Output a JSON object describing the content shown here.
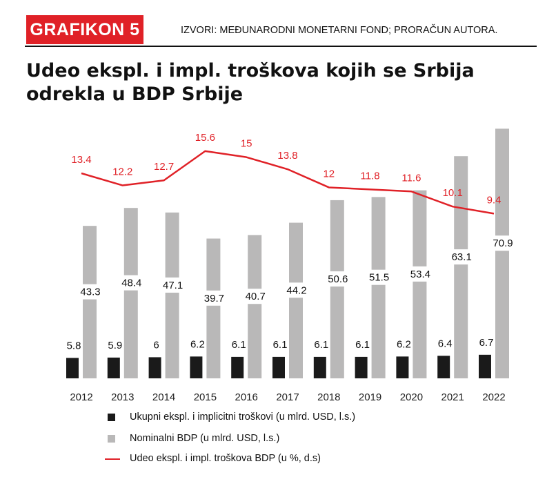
{
  "header": {
    "badge": "GRAFIKON 5",
    "source": "IZVORI: MEĐUNARODNI MONETARNI FOND; PRORAČUN AUTORA.",
    "title": "Udeo ekspl. i impl. troškova kojih se Srbija odrekla u BDP Srbije"
  },
  "colors": {
    "accent": "#e02127",
    "dark_bar": "#1a1a1a",
    "light_bar": "#b9b8b8"
  },
  "chart_data": {
    "type": "bar",
    "categories": [
      "2012",
      "2013",
      "2014",
      "2015",
      "2016",
      "2017",
      "2018",
      "2019",
      "2020",
      "2021",
      "2022"
    ],
    "series": [
      {
        "name": "Ukupni ekspl. i implicitni troškovi (u mlrd. USD, l.s.)",
        "type": "bar",
        "values": [
          5.8,
          5.9,
          6,
          6.2,
          6.1,
          6.1,
          6.1,
          6.1,
          6.2,
          6.4,
          6.7
        ],
        "labels": [
          "5.8",
          "5.9",
          "6",
          "6.2",
          "6.1",
          "6.1",
          "6.1",
          "6.1",
          "6.2",
          "6.4",
          "6.7"
        ]
      },
      {
        "name": "Nominalni BDP (u mlrd. USD, l.s.)",
        "type": "bar",
        "values": [
          43.3,
          48.4,
          47.1,
          39.7,
          40.7,
          44.2,
          50.6,
          51.5,
          53.4,
          63.1,
          70.9
        ],
        "labels": [
          "43.3",
          "48.4",
          "47.1",
          "39.7",
          "40.7",
          "44.2",
          "50.6",
          "51.5",
          "53.4",
          "63.1",
          "70.9"
        ]
      },
      {
        "name": "Udeo ekspl. i impl. troškova  BDP (u %, d.s)",
        "type": "line",
        "values": [
          13.4,
          12.2,
          12.7,
          15.6,
          15,
          13.8,
          12,
          11.8,
          11.6,
          10.1,
          9.4
        ],
        "labels": [
          "13.4",
          "12.2",
          "12.7",
          "15.6",
          "15",
          "13.8",
          "12",
          "11.8",
          "11.6",
          "10.1",
          "9.4"
        ]
      }
    ],
    "legend": "bottom"
  }
}
